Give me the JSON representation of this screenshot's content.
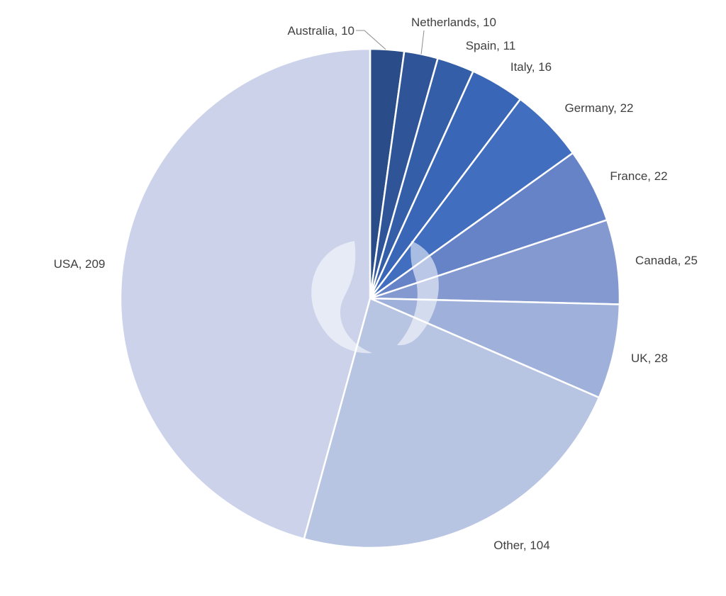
{
  "chart_data": {
    "type": "pie",
    "title": "",
    "start": "12 o'clock",
    "direction": "clockwise",
    "legend": "none",
    "slices": [
      {
        "label": "Australia",
        "value": 10,
        "color": "#2a4d8a",
        "text": "Australia, 10"
      },
      {
        "label": "Netherlands",
        "value": 10,
        "color": "#2f5598",
        "text": "Netherlands, 10"
      },
      {
        "label": "Spain",
        "value": 11,
        "color": "#345ea8",
        "text": "Spain, 11"
      },
      {
        "label": "Italy",
        "value": 16,
        "color": "#3966b6",
        "text": "Italy, 16"
      },
      {
        "label": "Germany",
        "value": 22,
        "color": "#416ebf",
        "text": "Germany, 22"
      },
      {
        "label": "France",
        "value": 22,
        "color": "#6683c8",
        "text": "France, 22"
      },
      {
        "label": "Canada",
        "value": 25,
        "color": "#8599d1",
        "text": "Canada, 25"
      },
      {
        "label": "UK",
        "value": 28,
        "color": "#9fb0da",
        "text": "UK, 28"
      },
      {
        "label": "Other",
        "value": 104,
        "color": "#b7c4e2",
        "text": "Other, 104"
      },
      {
        "label": "USA",
        "value": 209,
        "color": "#cbd2ea",
        "text": "USA, 209"
      }
    ]
  }
}
